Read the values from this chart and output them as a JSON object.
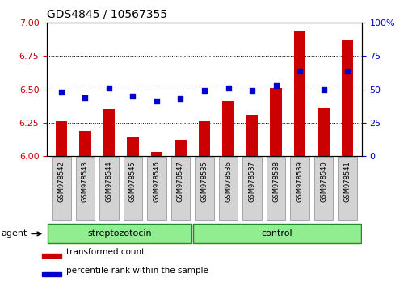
{
  "title": "GDS4845 / 10567355",
  "samples": [
    "GSM978542",
    "GSM978543",
    "GSM978544",
    "GSM978545",
    "GSM978546",
    "GSM978547",
    "GSM978535",
    "GSM978536",
    "GSM978537",
    "GSM978538",
    "GSM978539",
    "GSM978540",
    "GSM978541"
  ],
  "red_values": [
    6.26,
    6.19,
    6.35,
    6.14,
    6.03,
    6.12,
    6.26,
    6.41,
    6.31,
    6.51,
    6.94,
    6.36,
    6.87
  ],
  "blue_values": [
    48,
    44,
    51,
    45,
    41,
    43,
    49,
    51,
    49,
    53,
    64,
    50,
    64
  ],
  "ylim_left": [
    6.0,
    7.0
  ],
  "ylim_right": [
    0,
    100
  ],
  "yticks_left": [
    6.0,
    6.25,
    6.5,
    6.75,
    7.0
  ],
  "yticks_right": [
    0,
    25,
    50,
    75,
    100
  ],
  "bar_color": "#cc0000",
  "dot_color": "#0000cc",
  "bar_bottom": 6.0,
  "group1_label": "streptozotocin",
  "group1_n": 6,
  "group2_label": "control",
  "group2_n": 7,
  "group_fill": "#90ee90",
  "group_edge": "#228B22",
  "agent_label": "agent",
  "legend_items": [
    {
      "color": "#cc0000",
      "label": "transformed count"
    },
    {
      "color": "#0000cc",
      "label": "percentile rank within the sample"
    }
  ],
  "tick_label_color_left": "#cc0000",
  "tick_label_color_right": "#0000cc",
  "tick_bg": "#d3d3d3",
  "tick_edge": "#888888"
}
